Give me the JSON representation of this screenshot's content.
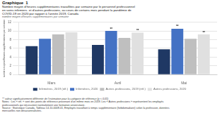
{
  "chart_data": {
    "type": "bar",
    "title": "Graphique  1",
    "subtitle": [
      "Nombre moyen d’heures supplémentaires travaillées par semaine par le personnel professionnel",
      "en soins infirmiers  et d’autres professions, au cours de certains mois pendant la pandémie de",
      "COVID‑19 en 2020 par rapport à l’année 2019, Canada"
    ],
    "y_label": "nombre moyen d’heures supplémentaires par semaine",
    "categories": [
      "Mars",
      "Avril",
      "Mai"
    ],
    "series": [
      {
        "name": "Infirmières, 2019 (réf.)",
        "color": "#1f3864",
        "values": [
          6.5,
          6.8,
          5.8
        ]
      },
      {
        "name": "Infirmières, 2020",
        "color": "#4472c4",
        "values": [
          8.2,
          10.0,
          10.5
        ]
      },
      {
        "name": "Autres professions, 2019 (réf.)",
        "color": "#bfbfbf",
        "values": [
          9.2,
          8.4,
          8.2
        ]
      },
      {
        "name": "Autres professions, 2020",
        "color": "#e0e0e0",
        "values": [
          9.7,
          9.6,
          9.2
        ]
      }
    ],
    "annotations": [
      {
        "series": "Infirmières, 2020",
        "category": "Avril",
        "text": "**"
      },
      {
        "series": "Autres professions, 2020",
        "category": "Avril",
        "text": "**"
      },
      {
        "series": "Infirmières, 2020",
        "category": "Mai",
        "text": "**"
      },
      {
        "series": "Autres professions, 2020",
        "category": "Mai",
        "text": "**"
      }
    ],
    "ylim": [
      0,
      12
    ],
    "yticks": [
      0,
      2,
      4,
      6,
      8,
      10,
      12
    ],
    "grid": true,
    "legend": "bottom",
    "footnotes": [
      "** valeur significativement différente de l’estimation pour la catégorie de référence (p < 0,01)",
      "Notes : Les « réf. » sont des points de référence provenant d’un même mois en 2019. Les « Autres professions » représentent les employés",
      "professionnels qui nécessitent normalement une formation universitaire.",
      "Source : Statistique Canada, Tableau 14-10-0008-01, Employés travaillant à temps supplémentaire (hebdomadaire) selon la profession, données",
      "mensuelles non désaisonnalisées."
    ]
  }
}
